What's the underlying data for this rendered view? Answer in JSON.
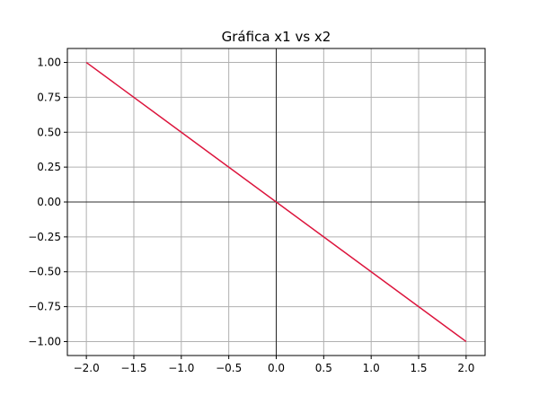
{
  "chart_data": {
    "type": "line",
    "title": "Gráfica x1 vs x2",
    "xlabel": "",
    "ylabel": "",
    "xlim": [
      -2.2,
      2.2
    ],
    "ylim": [
      -1.1,
      1.1
    ],
    "grid": true,
    "x_ticks": [
      -2.0,
      -1.5,
      -1.0,
      -0.5,
      0.0,
      0.5,
      1.0,
      1.5,
      2.0
    ],
    "x_tick_labels": [
      "−2.0",
      "−1.5",
      "−1.0",
      "−0.5",
      "0.0",
      "0.5",
      "1.0",
      "1.5",
      "2.0"
    ],
    "y_ticks": [
      1.0,
      0.75,
      0.5,
      0.25,
      0.0,
      -0.25,
      -0.5,
      -0.75,
      -1.0
    ],
    "y_tick_labels": [
      "1.00",
      "0.75",
      "0.50",
      "0.25",
      "0.00",
      "−0.25",
      "−0.50",
      "−0.75",
      "−1.00"
    ],
    "zero_lines": true,
    "series": [
      {
        "x": [
          -2.0,
          2.0
        ],
        "y": [
          1.0,
          -1.0
        ],
        "color": "#dc143c"
      }
    ],
    "colors": {
      "grid": "#b0b0b0",
      "axes": "#000000",
      "line": "#dc143c"
    }
  }
}
